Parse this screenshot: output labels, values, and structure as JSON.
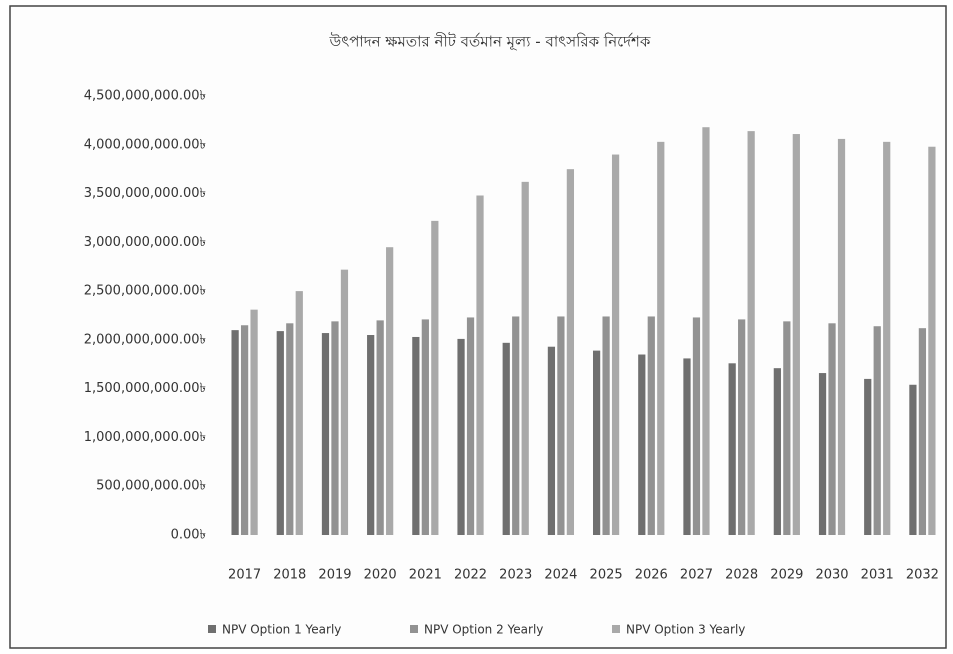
{
  "chart_data": {
    "type": "bar",
    "title": "উৎপাদন ক্ষমতার নীট বর্তমান মূল্য - বাৎসরিক নির্দেশক",
    "categories": [
      "2017",
      "2018",
      "2019",
      "2020",
      "2021",
      "2022",
      "2023",
      "2024",
      "2025",
      "2026",
      "2027",
      "2028",
      "2029",
      "2030",
      "2031",
      "2032"
    ],
    "series": [
      {
        "name": "NPV Option 1 Yearly",
        "color": "#6f6f6f",
        "values": [
          2100000000,
          2090000000,
          2070000000,
          2050000000,
          2030000000,
          2010000000,
          1970000000,
          1930000000,
          1890000000,
          1850000000,
          1810000000,
          1760000000,
          1710000000,
          1660000000,
          1600000000,
          1540000000
        ]
      },
      {
        "name": "NPV Option 2 Yearly",
        "color": "#929292",
        "values": [
          2150000000,
          2170000000,
          2190000000,
          2200000000,
          2210000000,
          2230000000,
          2240000000,
          2240000000,
          2240000000,
          2240000000,
          2230000000,
          2210000000,
          2190000000,
          2170000000,
          2140000000,
          2120000000
        ]
      },
      {
        "name": "NPV Option 3 Yearly",
        "color": "#a9a9a9",
        "values": [
          2310000000,
          2500000000,
          2720000000,
          2950000000,
          3220000000,
          3480000000,
          3620000000,
          3750000000,
          3900000000,
          4030000000,
          4180000000,
          4140000000,
          4110000000,
          4060000000,
          4030000000,
          3980000000
        ]
      }
    ],
    "ylim": [
      0,
      4500000000
    ],
    "yticks": [
      {
        "value": 0,
        "label": "0.00৳"
      },
      {
        "value": 500000000,
        "label": "500,000,000.00৳"
      },
      {
        "value": 1000000000,
        "label": "1,000,000,000.00৳"
      },
      {
        "value": 1500000000,
        "label": "1,500,000,000.00৳"
      },
      {
        "value": 2000000000,
        "label": "2,000,000,000.00৳"
      },
      {
        "value": 2500000000,
        "label": "2,500,000,000.00৳"
      },
      {
        "value": 3000000000,
        "label": "3,000,000,000.00৳"
      },
      {
        "value": 3500000000,
        "label": "3,500,000,000.00৳"
      },
      {
        "value": 4000000000,
        "label": "4,000,000,000.00৳"
      },
      {
        "value": 4500000000,
        "label": "4,500,000,000.00৳"
      }
    ],
    "grid": false,
    "legend": "bottom"
  }
}
